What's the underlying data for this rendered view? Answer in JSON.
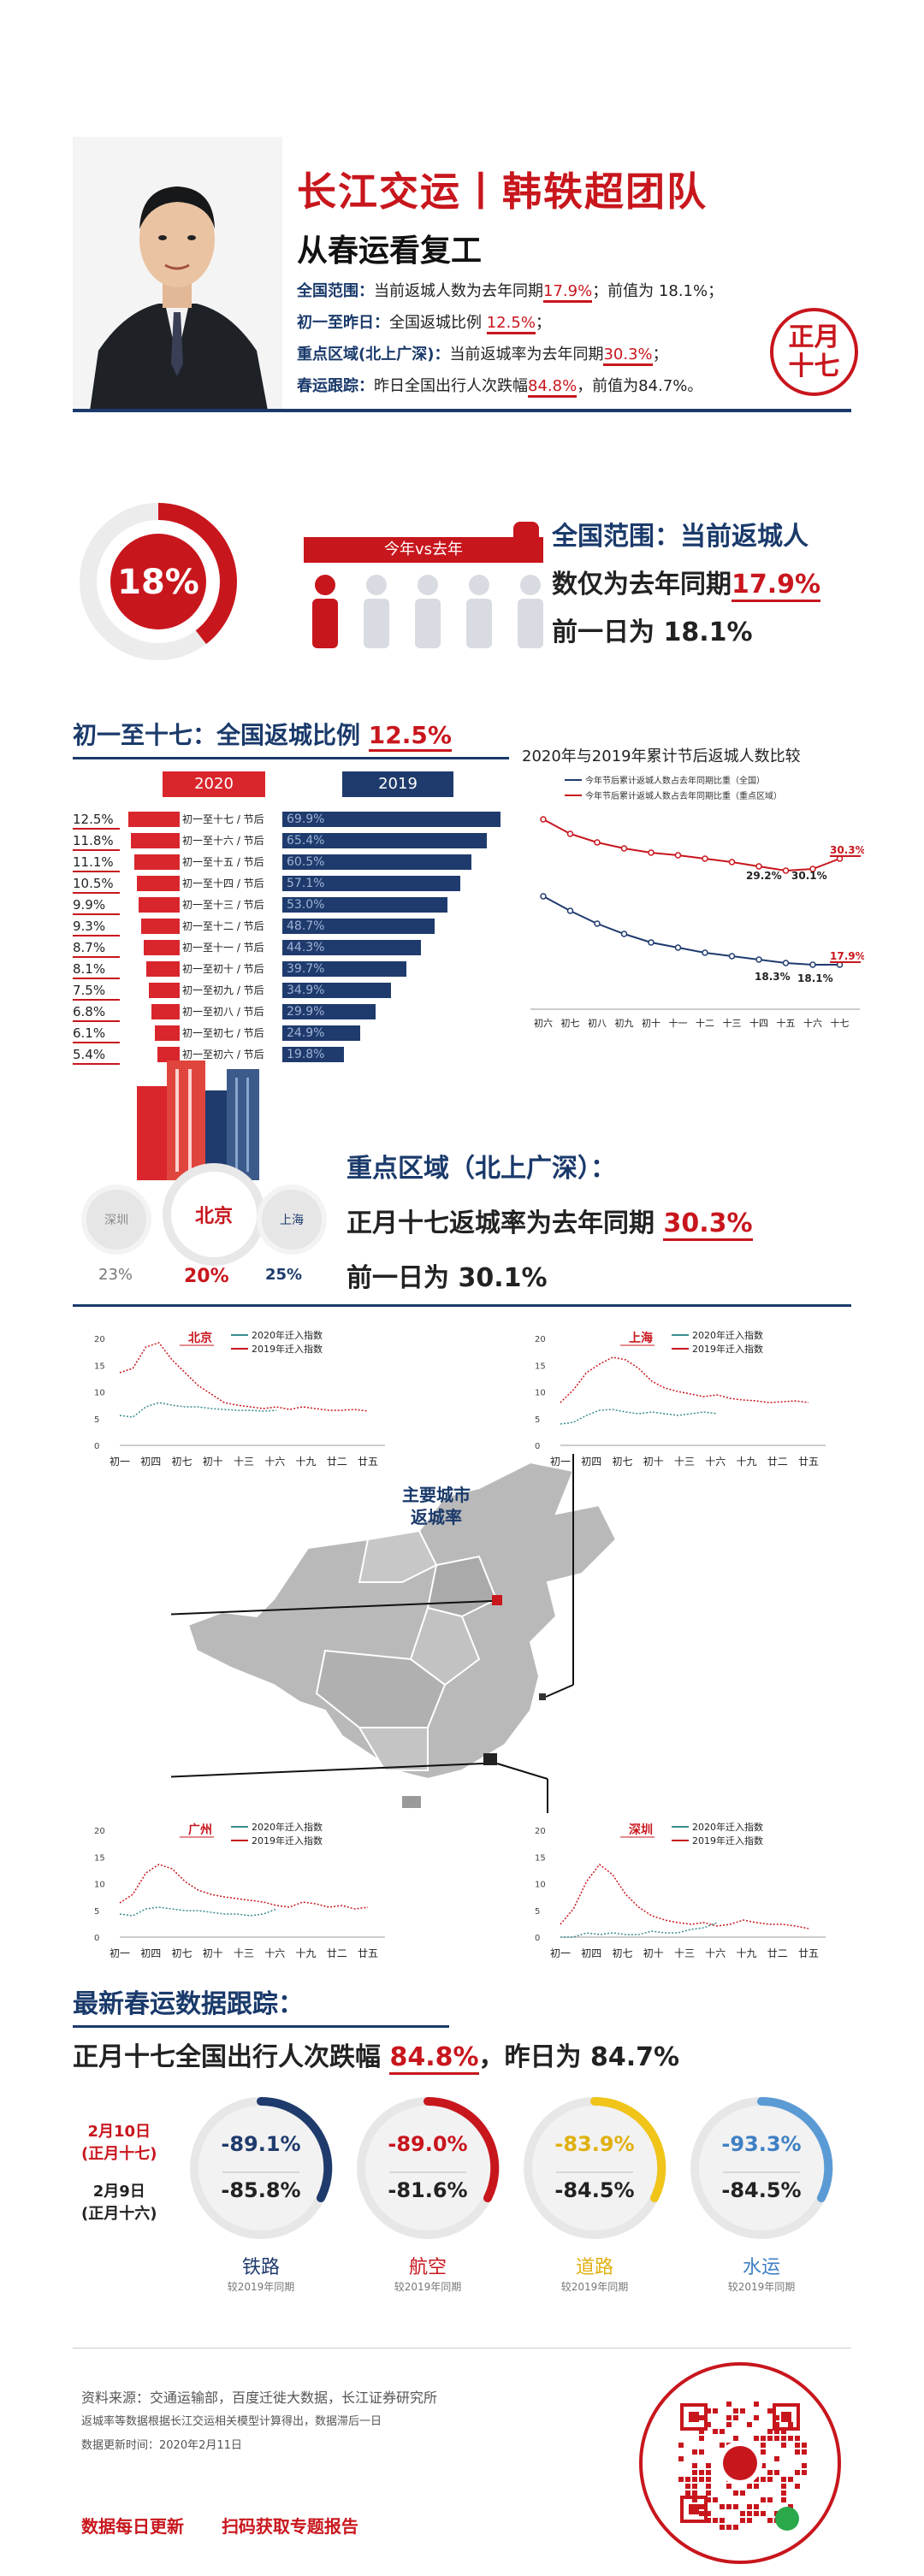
{
  "header": {
    "title": "长江交运丨韩轶超团队",
    "subtitle": "从春运看复工",
    "badge": "正月十七",
    "lines": [
      {
        "label": "全国范围：",
        "text1": "当前返城人数为去年同期",
        "hl": "17.9%",
        "text2": "；前值为 18.1%；"
      },
      {
        "label": "初一至昨日：",
        "text1": "全国返城比例 ",
        "hl": "12.5%",
        "text2": "；"
      },
      {
        "label": "重点区域(北上广深)：",
        "text1": "当前返城率为去年同期",
        "hl": "30.3%",
        "text2": "；"
      },
      {
        "label": "春运跟踪：",
        "text1": "昨日全国出行人次跌幅",
        "hl": "84.8%",
        "text2": "，前值为84.7%。"
      }
    ]
  },
  "national": {
    "ring_value": "18%",
    "ring_fraction": 0.18,
    "vs_label": "今年vs去年",
    "line1_a": "全国范围：当前返城人",
    "line2_a": "数仅为去年同期",
    "line2_hl": "17.9%",
    "line3": "前一日为 18.1%"
  },
  "ratio_section": {
    "title_a": "初一至十七：全国返城比例 ",
    "title_hl": "12.5%",
    "legend_2020": "2020",
    "legend_2019": "2019",
    "rows": [
      {
        "v2020": "12.5%",
        "label": "初一至十七 / 节后",
        "v2019": "69.9%",
        "f2020": 12.5,
        "f2019": 69.9
      },
      {
        "v2020": "11.8%",
        "label": "初一至十六 / 节后",
        "v2019": "65.4%",
        "f2020": 11.8,
        "f2019": 65.4
      },
      {
        "v2020": "11.1%",
        "label": "初一至十五 / 节后",
        "v2019": "60.5%",
        "f2020": 11.1,
        "f2019": 60.5
      },
      {
        "v2020": "10.5%",
        "label": "初一至十四 / 节后",
        "v2019": "57.1%",
        "f2020": 10.5,
        "f2019": 57.1
      },
      {
        "v2020": "9.9%",
        "label": "初一至十三 / 节后",
        "v2019": "53.0%",
        "f2020": 9.9,
        "f2019": 53.0
      },
      {
        "v2020": "9.3%",
        "label": "初一至十二 / 节后",
        "v2019": "48.7%",
        "f2020": 9.3,
        "f2019": 48.7
      },
      {
        "v2020": "8.7%",
        "label": "初一至十一 / 节后",
        "v2019": "44.3%",
        "f2020": 8.7,
        "f2019": 44.3
      },
      {
        "v2020": "8.1%",
        "label": "初一至初十 / 节后",
        "v2019": "39.7%",
        "f2020": 8.1,
        "f2019": 39.7
      },
      {
        "v2020": "7.5%",
        "label": "初一至初九 / 节后",
        "v2019": "34.9%",
        "f2020": 7.5,
        "f2019": 34.9
      },
      {
        "v2020": "6.8%",
        "label": "初一至初八 / 节后",
        "v2019": "29.9%",
        "f2020": 6.8,
        "f2019": 29.9
      },
      {
        "v2020": "6.1%",
        "label": "初一至初七 / 节后",
        "v2019": "24.9%",
        "f2020": 6.1,
        "f2019": 24.9
      },
      {
        "v2020": "5.4%",
        "label": "初一至初六 / 节后",
        "v2019": "19.8%",
        "f2020": 5.4,
        "f2019": 19.8
      }
    ]
  },
  "compare_chart": {
    "title": "2020年与2019年累计节后返城人数比较",
    "legend": [
      "今年节后累计返城人数占去年同期比重（全国）",
      "今年节后累计返城人数占去年同期比重（重点区域）"
    ],
    "categories": [
      "初六",
      "初七",
      "初八",
      "初九",
      "初十",
      "十一",
      "十二",
      "十三",
      "十四",
      "十五",
      "十六",
      "十七"
    ],
    "labels": {
      "a": "30.3%",
      "b": "29.2%",
      "c": "30.1%",
      "d": "17.9%",
      "e": "18.3%",
      "f": "18.1%"
    }
  },
  "key_region": {
    "title": "重点区域（北上广深）：",
    "line2_a": "正月十七返城率为去年同期 ",
    "line2_hl": "30.3%",
    "line3": "前一日为 30.1%",
    "cities": [
      {
        "name": "深圳",
        "pct": "23%"
      },
      {
        "name": "北京",
        "pct": "20%"
      },
      {
        "name": "上海",
        "pct": "25%"
      }
    ]
  },
  "map_section": {
    "label_line1": "主要城市",
    "label_line2": "返城率",
    "mini_legend_2020": "2020年迁入指数",
    "mini_legend_2019": "2019年迁入指数",
    "mini_x": [
      "初一",
      "初四",
      "初七",
      "初十",
      "十三",
      "十六",
      "十九",
      "廿二",
      "廿五"
    ],
    "mini_y": [
      "20",
      "15",
      "10",
      "5",
      "0"
    ],
    "charts": [
      {
        "city": "北京"
      },
      {
        "city": "上海"
      },
      {
        "city": "广州"
      },
      {
        "city": "深圳"
      }
    ]
  },
  "tracking": {
    "title": "最新春运数据跟踪：",
    "line_a": "正月十七全国出行人次跌幅 ",
    "line_hl": "84.8%",
    "line_b": "，昨日为 84.7%",
    "date1_a": "2月10日",
    "date1_b": "(正月十七)",
    "date2_a": "2月9日",
    "date2_b": "(正月十六)",
    "modes": [
      {
        "v1": "-89.1%",
        "v2": "-85.8%",
        "name": "铁路",
        "sub": "较2019年同期",
        "color": "#1f3b6d",
        "c1": "#1f3b6d"
      },
      {
        "v1": "-89.0%",
        "v2": "-81.6%",
        "name": "航空",
        "sub": "较2019年同期",
        "color": "#c8161d",
        "c1": "#c8161d"
      },
      {
        "v1": "-83.9%",
        "v2": "-84.5%",
        "name": "道路",
        "sub": "较2019年同期",
        "color": "#f0c419",
        "c1": "#e0b010"
      },
      {
        "v1": "-93.3%",
        "v2": "-84.5%",
        "name": "水运",
        "sub": "较2019年同期",
        "color": "#5b9bd5",
        "c1": "#3f80c4"
      }
    ]
  },
  "footer": {
    "source": "资料来源：交通运输部，百度迁徙大数据，长江证券研究所",
    "note1": "返城率等数据根据长江交运相关模型计算得出，数据滞后一日",
    "note2": "数据更新时间：2020年2月11日",
    "cta1": "数据每日更新",
    "cta2": "扫码获取专题报告"
  },
  "colors": {
    "red": "#c8161d",
    "navy": "#1a3a6b",
    "bar2020": "#d9262c",
    "bar2019": "#1f3b6d"
  }
}
